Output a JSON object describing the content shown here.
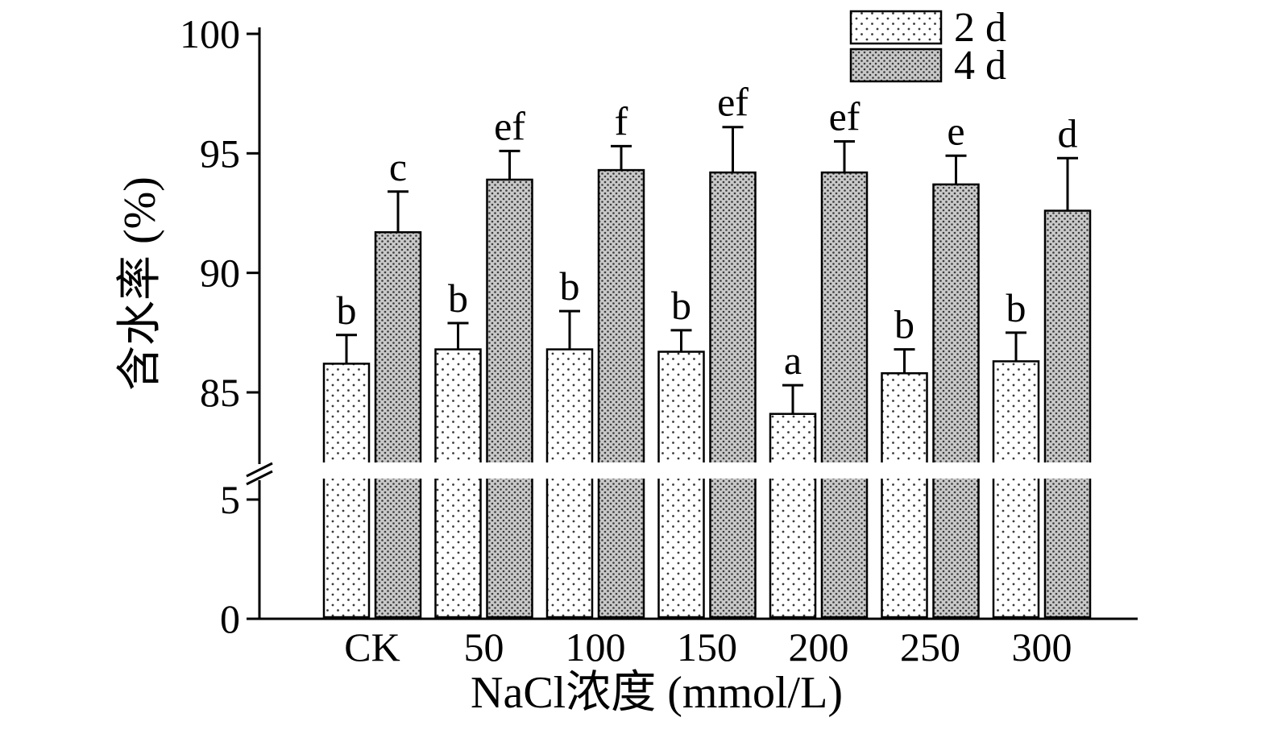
{
  "chart_data": {
    "type": "bar",
    "title": "",
    "xlabel": "NaCl浓度 (mmol/L)",
    "ylabel": "含水率 (%)",
    "categories": [
      "CK",
      "50",
      "100",
      "150",
      "200",
      "250",
      "300"
    ],
    "series": [
      {
        "name": "2 d",
        "pattern": "sparse-dots-on-white",
        "values": [
          86.2,
          86.8,
          86.8,
          86.7,
          84.1,
          85.8,
          86.3
        ],
        "errors": [
          1.2,
          1.1,
          1.6,
          0.9,
          1.2,
          1.0,
          1.2
        ],
        "letters": [
          "b",
          "b",
          "b",
          "b",
          "a",
          "b",
          "b"
        ]
      },
      {
        "name": "4 d",
        "pattern": "dense-dots-on-gray",
        "values": [
          91.7,
          93.9,
          94.3,
          94.2,
          94.2,
          93.7,
          92.6
        ],
        "errors": [
          1.7,
          1.2,
          1.0,
          1.9,
          1.3,
          1.2,
          2.2
        ],
        "letters": [
          "c",
          "ef",
          "f",
          "ef",
          "ef",
          "e",
          "d"
        ]
      }
    ],
    "y_axis": {
      "upper_ticks": [
        85,
        90,
        95,
        100
      ],
      "lower_ticks": [
        0,
        5
      ],
      "ylim_segments": [
        [
          0,
          5
        ],
        [
          85,
          100
        ]
      ],
      "axis_break": true
    },
    "legend_position": "top-right",
    "grid": false,
    "colors": {
      "axis": "#000000",
      "bar_outline": "#000000",
      "series_2d_fill": "#ffffff",
      "series_4d_fill": "#c9c9c9",
      "dot": "#3a3a3a"
    }
  }
}
